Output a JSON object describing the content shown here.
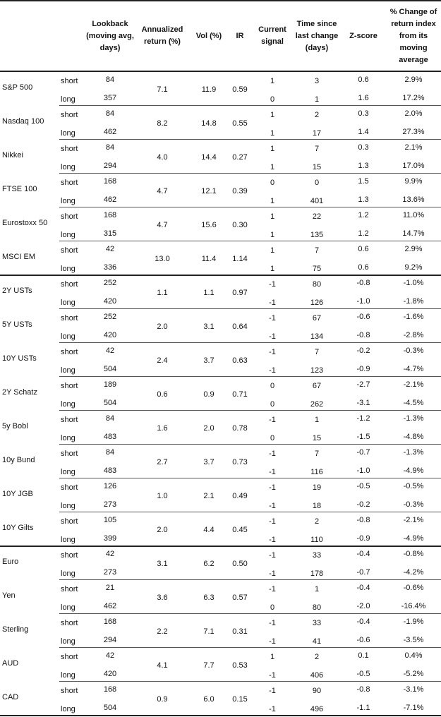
{
  "header": {
    "lookback": "Lookback (moving avg, days)",
    "annualized": "Annualized return (%)",
    "vol": "Vol (%)",
    "ir": "IR",
    "signal": "Current signal",
    "time": "Time since last change (days)",
    "zscore": "Z-score",
    "pct": "% Change of return index from its moving average"
  },
  "labels": {
    "short": "short",
    "long": "long"
  },
  "groups": [
    {
      "assets": [
        {
          "name": "S&P 500",
          "ann": "7.1",
          "vol": "11.9",
          "ir": "0.59",
          "short": {
            "lookback": "84",
            "signal": "1",
            "time": "3",
            "z": "0.6",
            "pct": "2.9%"
          },
          "long": {
            "lookback": "357",
            "signal": "0",
            "time": "1",
            "z": "1.6",
            "pct": "17.2%"
          }
        },
        {
          "name": "Nasdaq 100",
          "ann": "8.2",
          "vol": "14.8",
          "ir": "0.55",
          "short": {
            "lookback": "84",
            "signal": "1",
            "time": "2",
            "z": "0.3",
            "pct": "2.0%"
          },
          "long": {
            "lookback": "462",
            "signal": "1",
            "time": "17",
            "z": "1.4",
            "pct": "27.3%"
          }
        },
        {
          "name": "Nikkei",
          "ann": "4.0",
          "vol": "14.4",
          "ir": "0.27",
          "short": {
            "lookback": "84",
            "signal": "1",
            "time": "7",
            "z": "0.3",
            "pct": "2.1%"
          },
          "long": {
            "lookback": "294",
            "signal": "1",
            "time": "15",
            "z": "1.3",
            "pct": "17.0%"
          }
        },
        {
          "name": "FTSE 100",
          "ann": "4.7",
          "vol": "12.1",
          "ir": "0.39",
          "short": {
            "lookback": "168",
            "signal": "0",
            "time": "0",
            "z": "1.5",
            "pct": "9.9%"
          },
          "long": {
            "lookback": "462",
            "signal": "1",
            "time": "401",
            "z": "1.3",
            "pct": "13.6%"
          }
        },
        {
          "name": "Eurostoxx 50",
          "ann": "4.7",
          "vol": "15.6",
          "ir": "0.30",
          "short": {
            "lookback": "168",
            "signal": "1",
            "time": "22",
            "z": "1.2",
            "pct": "11.0%"
          },
          "long": {
            "lookback": "315",
            "signal": "1",
            "time": "135",
            "z": "1.2",
            "pct": "14.7%"
          }
        },
        {
          "name": "MSCI EM",
          "ann": "13.0",
          "vol": "11.4",
          "ir": "1.14",
          "short": {
            "lookback": "42",
            "signal": "1",
            "time": "7",
            "z": "0.6",
            "pct": "2.9%"
          },
          "long": {
            "lookback": "336",
            "signal": "1",
            "time": "75",
            "z": "0.6",
            "pct": "9.2%"
          }
        }
      ]
    },
    {
      "assets": [
        {
          "name": "2Y USTs",
          "ann": "1.1",
          "vol": "1.1",
          "ir": "0.97",
          "short": {
            "lookback": "252",
            "signal": "-1",
            "time": "80",
            "z": "-0.8",
            "pct": "-1.0%"
          },
          "long": {
            "lookback": "420",
            "signal": "-1",
            "time": "126",
            "z": "-1.0",
            "pct": "-1.8%"
          }
        },
        {
          "name": "5Y USTs",
          "ann": "2.0",
          "vol": "3.1",
          "ir": "0.64",
          "short": {
            "lookback": "252",
            "signal": "-1",
            "time": "67",
            "z": "-0.6",
            "pct": "-1.6%"
          },
          "long": {
            "lookback": "420",
            "signal": "-1",
            "time": "134",
            "z": "-0.8",
            "pct": "-2.8%"
          }
        },
        {
          "name": "10Y USTs",
          "ann": "2.4",
          "vol": "3.7",
          "ir": "0.63",
          "short": {
            "lookback": "42",
            "signal": "-1",
            "time": "7",
            "z": "-0.2",
            "pct": "-0.3%"
          },
          "long": {
            "lookback": "504",
            "signal": "-1",
            "time": "123",
            "z": "-0.9",
            "pct": "-4.7%"
          }
        },
        {
          "name": "2Y Schatz",
          "ann": "0.6",
          "vol": "0.9",
          "ir": "0.71",
          "short": {
            "lookback": "189",
            "signal": "0",
            "time": "67",
            "z": "-2.7",
            "pct": "-2.1%"
          },
          "long": {
            "lookback": "504",
            "signal": "0",
            "time": "262",
            "z": "-3.1",
            "pct": "-4.5%"
          }
        },
        {
          "name": "5y Bobl",
          "ann": "1.6",
          "vol": "2.0",
          "ir": "0.78",
          "short": {
            "lookback": "84",
            "signal": "-1",
            "time": "1",
            "z": "-1.2",
            "pct": "-1.3%"
          },
          "long": {
            "lookback": "483",
            "signal": "0",
            "time": "15",
            "z": "-1.5",
            "pct": "-4.8%"
          }
        },
        {
          "name": "10y Bund",
          "ann": "2.7",
          "vol": "3.7",
          "ir": "0.73",
          "short": {
            "lookback": "84",
            "signal": "-1",
            "time": "7",
            "z": "-0.7",
            "pct": "-1.3%"
          },
          "long": {
            "lookback": "483",
            "signal": "-1",
            "time": "116",
            "z": "-1.0",
            "pct": "-4.9%"
          }
        },
        {
          "name": "10Y JGB",
          "ann": "1.0",
          "vol": "2.1",
          "ir": "0.49",
          "short": {
            "lookback": "126",
            "signal": "-1",
            "time": "19",
            "z": "-0.5",
            "pct": "-0.5%"
          },
          "long": {
            "lookback": "273",
            "signal": "-1",
            "time": "18",
            "z": "-0.2",
            "pct": "-0.3%"
          }
        },
        {
          "name": "10Y Gilts",
          "ann": "2.0",
          "vol": "4.4",
          "ir": "0.45",
          "short": {
            "lookback": "105",
            "signal": "-1",
            "time": "2",
            "z": "-0.8",
            "pct": "-2.1%"
          },
          "long": {
            "lookback": "399",
            "signal": "-1",
            "time": "110",
            "z": "-0.9",
            "pct": "-4.9%"
          }
        }
      ]
    },
    {
      "assets": [
        {
          "name": "Euro",
          "ann": "3.1",
          "vol": "6.2",
          "ir": "0.50",
          "short": {
            "lookback": "42",
            "signal": "-1",
            "time": "33",
            "z": "-0.4",
            "pct": "-0.8%"
          },
          "long": {
            "lookback": "273",
            "signal": "-1",
            "time": "178",
            "z": "-0.7",
            "pct": "-4.2%"
          }
        },
        {
          "name": "Yen",
          "ann": "3.6",
          "vol": "6.3",
          "ir": "0.57",
          "short": {
            "lookback": "21",
            "signal": "-1",
            "time": "1",
            "z": "-0.4",
            "pct": "-0.6%"
          },
          "long": {
            "lookback": "462",
            "signal": "0",
            "time": "80",
            "z": "-2.0",
            "pct": "-16.4%"
          }
        },
        {
          "name": "Sterling",
          "ann": "2.2",
          "vol": "7.1",
          "ir": "0.31",
          "short": {
            "lookback": "168",
            "signal": "-1",
            "time": "33",
            "z": "-0.4",
            "pct": "-1.9%"
          },
          "long": {
            "lookback": "294",
            "signal": "-1",
            "time": "41",
            "z": "-0.6",
            "pct": "-3.5%"
          }
        },
        {
          "name": "AUD",
          "ann": "4.1",
          "vol": "7.7",
          "ir": "0.53",
          "short": {
            "lookback": "42",
            "signal": "1",
            "time": "2",
            "z": "0.1",
            "pct": "0.4%"
          },
          "long": {
            "lookback": "420",
            "signal": "-1",
            "time": "406",
            "z": "-0.5",
            "pct": "-5.2%"
          }
        },
        {
          "name": "CAD",
          "ann": "0.9",
          "vol": "6.0",
          "ir": "0.15",
          "short": {
            "lookback": "168",
            "signal": "-1",
            "time": "90",
            "z": "-0.8",
            "pct": "-3.1%"
          },
          "long": {
            "lookback": "504",
            "signal": "-1",
            "time": "496",
            "z": "-1.1",
            "pct": "-7.1%"
          }
        }
      ]
    }
  ]
}
